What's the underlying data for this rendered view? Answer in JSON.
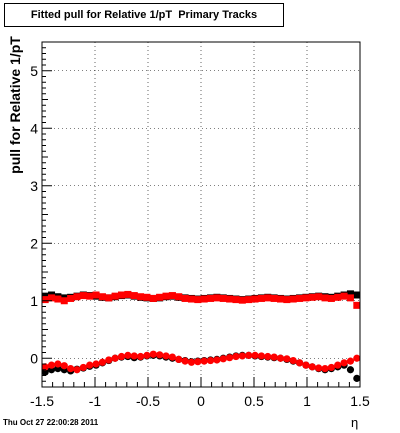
{
  "chart_data": {
    "type": "scatter",
    "title": "Fitted pull for Relative 1/pT  Primary Tracks",
    "ylabel": "pull for Relative 1/pT",
    "xlabel": "η",
    "timestamp": "Thu Oct 27 22:00:28 2011",
    "xlim": [
      -1.5,
      1.5
    ],
    "ylim": [
      -0.5,
      5.5
    ],
    "x_ticks": [
      "-1.5",
      "-1",
      "-0.5",
      "0",
      "0.5",
      "1",
      "1.5"
    ],
    "y_ticks": [
      "0",
      "1",
      "2",
      "3",
      "4",
      "5"
    ],
    "grid": true,
    "colors": {
      "black_series": "#000000",
      "red_series": "#ff0000"
    },
    "x": [
      -1.47,
      -1.41,
      -1.35,
      -1.29,
      -1.23,
      -1.17,
      -1.11,
      -1.05,
      -0.99,
      -0.93,
      -0.87,
      -0.81,
      -0.75,
      -0.69,
      -0.63,
      -0.57,
      -0.51,
      -0.45,
      -0.39,
      -0.33,
      -0.27,
      -0.21,
      -0.15,
      -0.09,
      -0.03,
      0.03,
      0.09,
      0.15,
      0.21,
      0.27,
      0.33,
      0.39,
      0.45,
      0.51,
      0.57,
      0.63,
      0.69,
      0.75,
      0.81,
      0.87,
      0.93,
      0.99,
      1.05,
      1.11,
      1.17,
      1.23,
      1.29,
      1.35,
      1.41,
      1.47
    ],
    "series": [
      {
        "marker": "circle",
        "color": "#000000",
        "values": [
          -0.24,
          -0.2,
          -0.18,
          -0.2,
          -0.22,
          -0.19,
          -0.17,
          -0.14,
          -0.12,
          -0.08,
          -0.04,
          0.0,
          0.02,
          0.03,
          0.01,
          0.02,
          0.04,
          0.05,
          0.04,
          0.02,
          0.0,
          -0.02,
          -0.04,
          -0.06,
          -0.05,
          -0.04,
          -0.03,
          -0.02,
          0.0,
          0.02,
          0.04,
          0.05,
          0.05,
          0.04,
          0.03,
          0.02,
          0.01,
          0.0,
          -0.02,
          -0.05,
          -0.08,
          -0.12,
          -0.15,
          -0.18,
          -0.2,
          -0.18,
          -0.15,
          -0.12,
          -0.2,
          -0.35
        ]
      },
      {
        "marker": "square",
        "color": "#000000",
        "values": [
          1.08,
          1.1,
          1.07,
          1.05,
          1.06,
          1.08,
          1.1,
          1.09,
          1.08,
          1.06,
          1.05,
          1.07,
          1.09,
          1.1,
          1.08,
          1.06,
          1.05,
          1.04,
          1.05,
          1.07,
          1.08,
          1.06,
          1.05,
          1.04,
          1.03,
          1.04,
          1.05,
          1.06,
          1.05,
          1.04,
          1.03,
          1.02,
          1.03,
          1.04,
          1.05,
          1.06,
          1.05,
          1.04,
          1.03,
          1.04,
          1.05,
          1.06,
          1.07,
          1.08,
          1.07,
          1.06,
          1.08,
          1.1,
          1.12,
          1.1
        ]
      },
      {
        "marker": "circle",
        "color": "#ff0000",
        "values": [
          -0.15,
          -0.12,
          -0.1,
          -0.13,
          -0.18,
          -0.2,
          -0.16,
          -0.12,
          -0.1,
          -0.07,
          -0.03,
          0.0,
          0.03,
          0.05,
          0.04,
          0.03,
          0.05,
          0.07,
          0.06,
          0.04,
          0.02,
          -0.02,
          -0.05,
          -0.07,
          -0.06,
          -0.05,
          -0.04,
          -0.03,
          -0.01,
          0.01,
          0.03,
          0.04,
          0.05,
          0.05,
          0.04,
          0.03,
          0.02,
          0.0,
          -0.01,
          -0.04,
          -0.08,
          -0.12,
          -0.15,
          -0.17,
          -0.18,
          -0.16,
          -0.12,
          -0.08,
          -0.05,
          0.0
        ]
      },
      {
        "marker": "square",
        "color": "#ff0000",
        "values": [
          1.02,
          1.05,
          1.03,
          1.0,
          1.04,
          1.07,
          1.09,
          1.08,
          1.1,
          1.07,
          1.05,
          1.08,
          1.1,
          1.11,
          1.09,
          1.07,
          1.06,
          1.04,
          1.06,
          1.08,
          1.09,
          1.07,
          1.04,
          1.03,
          1.02,
          1.03,
          1.04,
          1.05,
          1.04,
          1.03,
          1.02,
          1.01,
          1.02,
          1.03,
          1.04,
          1.05,
          1.04,
          1.03,
          1.02,
          1.03,
          1.04,
          1.05,
          1.06,
          1.07,
          1.05,
          1.04,
          1.06,
          1.08,
          1.05,
          0.92
        ]
      }
    ]
  }
}
